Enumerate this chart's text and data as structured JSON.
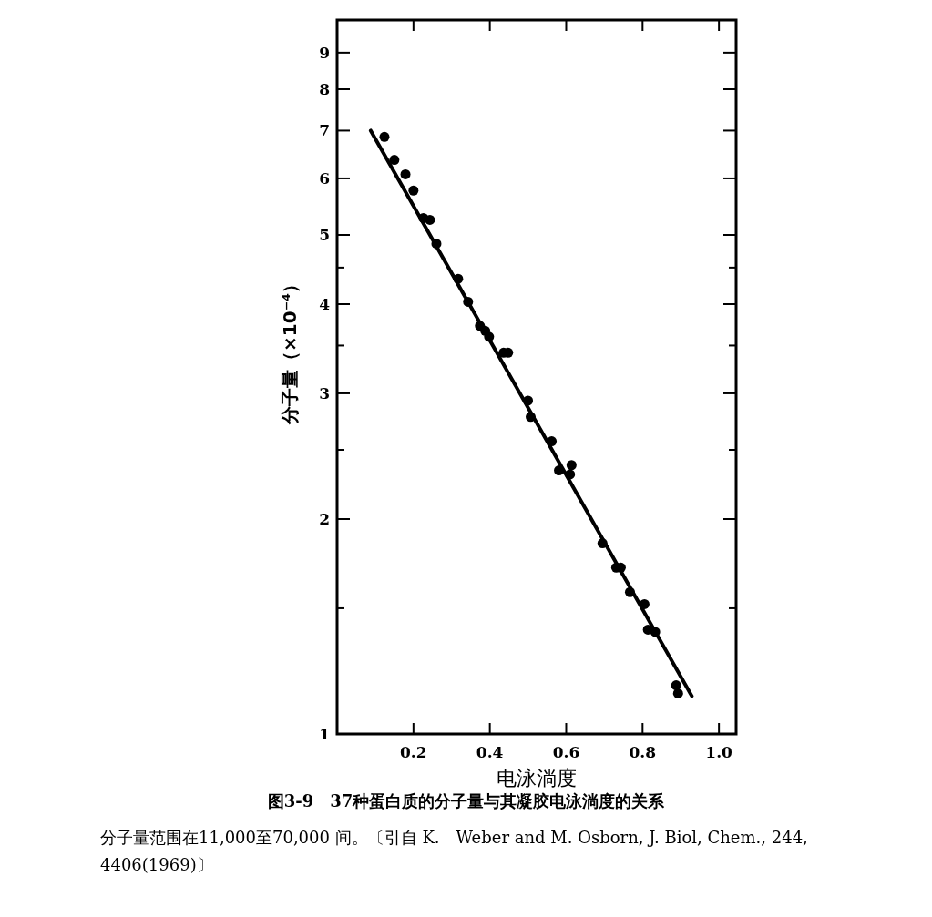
{
  "chart_data": {
    "type": "scatter",
    "xlabel": "电泳淌度",
    "ylabel": "分子量（×10⁻⁴）",
    "annotations": [
      "图3-9　37种蛋白质的分子量与其凝胶电泳淌度的关系",
      "分子量范围在11,000至70,000 间。〔引自 K.　Weber and M. Osborn, J. Biol, Chem., 244, 4406(1969)〕"
    ],
    "log": "y",
    "xlim": [
      0,
      1.045
    ],
    "ylim": [
      1,
      10
    ],
    "xticks": [
      {
        "value": 0.2,
        "label": "0.2"
      },
      {
        "value": 0.4,
        "label": "0.4"
      },
      {
        "value": 0.6,
        "label": "0.6"
      },
      {
        "value": 0.8,
        "label": "0.8"
      },
      {
        "value": 1.0,
        "label": "1.0"
      }
    ],
    "yticks": [
      1,
      {
        "value": 1.5,
        "label": null
      },
      2,
      {
        "value": 2.5,
        "label": null
      },
      3,
      {
        "value": 3.5,
        "label": null
      },
      4,
      {
        "value": 4.5,
        "label": null
      },
      5,
      6,
      7,
      8,
      9
    ],
    "grid": false,
    "series": [
      {
        "type": "scatter",
        "color": "#000000",
        "marker": "circle",
        "x": [
          0.124,
          0.15,
          0.179,
          0.2,
          0.226,
          0.243,
          0.26,
          0.317,
          0.343,
          0.374,
          0.398,
          0.388,
          0.436,
          0.448,
          0.5,
          0.507,
          0.562,
          0.581,
          0.614,
          0.61,
          0.695,
          0.731,
          0.743,
          0.767,
          0.805,
          0.814,
          0.833,
          0.888,
          0.893
        ],
        "values": [
          6.86,
          6.37,
          6.08,
          5.77,
          5.28,
          5.25,
          4.86,
          4.34,
          4.03,
          3.73,
          3.6,
          3.67,
          3.42,
          3.42,
          2.93,
          2.78,
          2.57,
          2.34,
          2.38,
          2.31,
          1.85,
          1.71,
          1.71,
          1.58,
          1.52,
          1.4,
          1.39,
          1.17,
          1.14
        ]
      },
      {
        "type": "line",
        "color": "#000000",
        "line_style": "solid",
        "x": [
          0.088,
          0.929
        ],
        "values": [
          7.0,
          1.13
        ]
      }
    ]
  }
}
